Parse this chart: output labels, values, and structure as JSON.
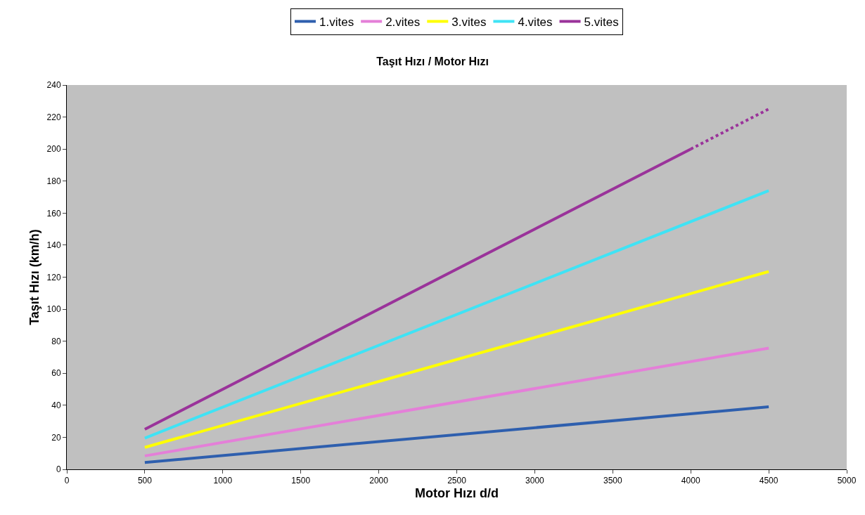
{
  "chart_data": {
    "type": "line",
    "title": "Taşıt Hızı / Motor Hızı",
    "xlabel": "Motor Hızı d/d",
    "ylabel": "Taşıt Hızı (km/h)",
    "xlim": [
      0,
      5000
    ],
    "xticks": [
      0,
      500,
      1000,
      1500,
      2000,
      2500,
      3000,
      3500,
      4000,
      4500,
      5000
    ],
    "ylim": [
      0,
      240
    ],
    "yticks": [
      0,
      20,
      40,
      60,
      80,
      100,
      120,
      140,
      160,
      180,
      200,
      220,
      240
    ],
    "grid": false,
    "legend": "top",
    "marker": "none",
    "line_style": "solid",
    "series": [
      {
        "name": "1.vites",
        "color": "#2e5fae",
        "x": [
          500,
          4500
        ],
        "values": [
          4.3,
          39
        ]
      },
      {
        "name": "2.vites",
        "color": "#e47fd8",
        "x": [
          500,
          4500
        ],
        "values": [
          8.4,
          75.7
        ]
      },
      {
        "name": "3.vites",
        "color": "#ffff00",
        "x": [
          500,
          4500
        ],
        "values": [
          13.7,
          123.5
        ]
      },
      {
        "name": "4.vites",
        "color": "#3fe3f5",
        "x": [
          500,
          4500
        ],
        "values": [
          19.5,
          174
        ]
      },
      {
        "name": "5.vites",
        "color": "#9a339a",
        "x": [
          500,
          4000
        ],
        "values": [
          25,
          200
        ]
      },
      {
        "color": "#9a339a",
        "x": [
          4000,
          4500
        ],
        "values": [
          200,
          225
        ],
        "line_style": "dotted"
      }
    ]
  }
}
